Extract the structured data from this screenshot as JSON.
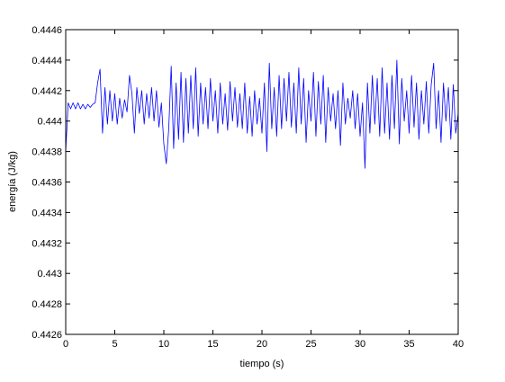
{
  "chart_data": {
    "type": "line",
    "xlabel": "tiempo (s)",
    "ylabel": "energía (J/kg)",
    "xlim": [
      0,
      40
    ],
    "xticks": [
      0,
      5,
      10,
      15,
      20,
      25,
      30,
      35,
      40
    ],
    "ylim": [
      0.4426,
      0.4446
    ],
    "yticks": [
      0.4426,
      0.4428,
      0.443,
      0.4432,
      0.4434,
      0.4436,
      0.4438,
      0.444,
      0.4442,
      0.4444,
      0.4446
    ],
    "x": [
      0,
      0.25,
      0.5,
      0.75,
      1,
      1.25,
      1.5,
      1.75,
      2,
      2.25,
      2.5,
      2.75,
      3,
      3.25,
      3.5,
      3.75,
      4,
      4.25,
      4.5,
      4.75,
      5,
      5.25,
      5.5,
      5.75,
      6,
      6.25,
      6.5,
      6.75,
      7,
      7.25,
      7.5,
      7.75,
      8,
      8.25,
      8.5,
      8.75,
      9,
      9.25,
      9.5,
      9.75,
      10,
      10.25,
      10.5,
      10.75,
      11,
      11.25,
      11.5,
      11.75,
      12,
      12.25,
      12.5,
      12.75,
      13,
      13.25,
      13.5,
      13.75,
      14,
      14.25,
      14.5,
      14.75,
      15,
      15.25,
      15.5,
      15.75,
      16,
      16.25,
      16.5,
      16.75,
      17,
      17.25,
      17.5,
      17.75,
      18,
      18.25,
      18.5,
      18.75,
      19,
      19.25,
      19.5,
      19.75,
      20,
      20.25,
      20.5,
      20.75,
      21,
      21.25,
      21.5,
      21.75,
      22,
      22.25,
      22.5,
      22.75,
      23,
      23.25,
      23.5,
      23.75,
      24,
      24.25,
      24.5,
      24.75,
      25,
      25.25,
      25.5,
      25.75,
      26,
      26.25,
      26.5,
      26.75,
      27,
      27.25,
      27.5,
      27.75,
      28,
      28.25,
      28.5,
      28.75,
      29,
      29.25,
      29.5,
      29.75,
      30,
      30.25,
      30.5,
      30.75,
      31,
      31.25,
      31.5,
      31.75,
      32,
      32.25,
      32.5,
      32.75,
      33,
      33.25,
      33.5,
      33.75,
      34,
      34.25,
      34.5,
      34.75,
      35,
      35.25,
      35.5,
      35.75,
      36,
      36.25,
      36.5,
      36.75,
      37,
      37.25,
      37.5,
      37.75,
      38,
      38.25,
      38.5,
      38.75,
      39,
      39.25,
      39.5,
      39.75,
      40
    ],
    "series": [
      {
        "color": "#0000ff",
        "values": [
          0.4438,
          0.44412,
          0.44408,
          0.44412,
          0.44408,
          0.44412,
          0.44408,
          0.44411,
          0.44408,
          0.44411,
          0.44409,
          0.44411,
          0.44412,
          0.44425,
          0.44434,
          0.44392,
          0.44422,
          0.44398,
          0.4442,
          0.444,
          0.44418,
          0.44398,
          0.44415,
          0.44402,
          0.44414,
          0.44406,
          0.4443,
          0.44418,
          0.44392,
          0.44422,
          0.44405,
          0.4442,
          0.44398,
          0.44418,
          0.44402,
          0.44422,
          0.444,
          0.4442,
          0.44396,
          0.44412,
          0.44385,
          0.44372,
          0.44395,
          0.44436,
          0.44382,
          0.44425,
          0.44388,
          0.44432,
          0.44386,
          0.44428,
          0.44392,
          0.4443,
          0.44395,
          0.44435,
          0.4439,
          0.44425,
          0.44398,
          0.44422,
          0.44395,
          0.44428,
          0.444,
          0.4442,
          0.44392,
          0.44425,
          0.44398,
          0.44418,
          0.44394,
          0.44426,
          0.444,
          0.44422,
          0.44396,
          0.44418,
          0.44395,
          0.44425,
          0.44392,
          0.44416,
          0.4439,
          0.4442,
          0.44398,
          0.44415,
          0.44392,
          0.44425,
          0.4438,
          0.44438,
          0.44395,
          0.44422,
          0.4439,
          0.4443,
          0.44395,
          0.44428,
          0.444,
          0.44432,
          0.44396,
          0.44425,
          0.44392,
          0.44435,
          0.44398,
          0.44428,
          0.44386,
          0.4442,
          0.444,
          0.44432,
          0.4439,
          0.44426,
          0.44398,
          0.4443,
          0.44386,
          0.44422,
          0.444,
          0.44418,
          0.44395,
          0.4442,
          0.44384,
          0.44425,
          0.44398,
          0.44415,
          0.44402,
          0.4442,
          0.44395,
          0.44418,
          0.4439,
          0.44412,
          0.44369,
          0.44425,
          0.44392,
          0.4443,
          0.44398,
          0.44428,
          0.4439,
          0.44435,
          0.44392,
          0.44425,
          0.44388,
          0.4443,
          0.44395,
          0.4444,
          0.44385,
          0.44428,
          0.444,
          0.4442,
          0.44392,
          0.4443,
          0.44396,
          0.44425,
          0.44388,
          0.4442,
          0.44398,
          0.44426,
          0.44392,
          0.44424,
          0.44438,
          0.44395,
          0.4442,
          0.44386,
          0.44425,
          0.444,
          0.44422,
          0.44388,
          0.44424,
          0.44392,
          0.44405
        ]
      }
    ]
  }
}
